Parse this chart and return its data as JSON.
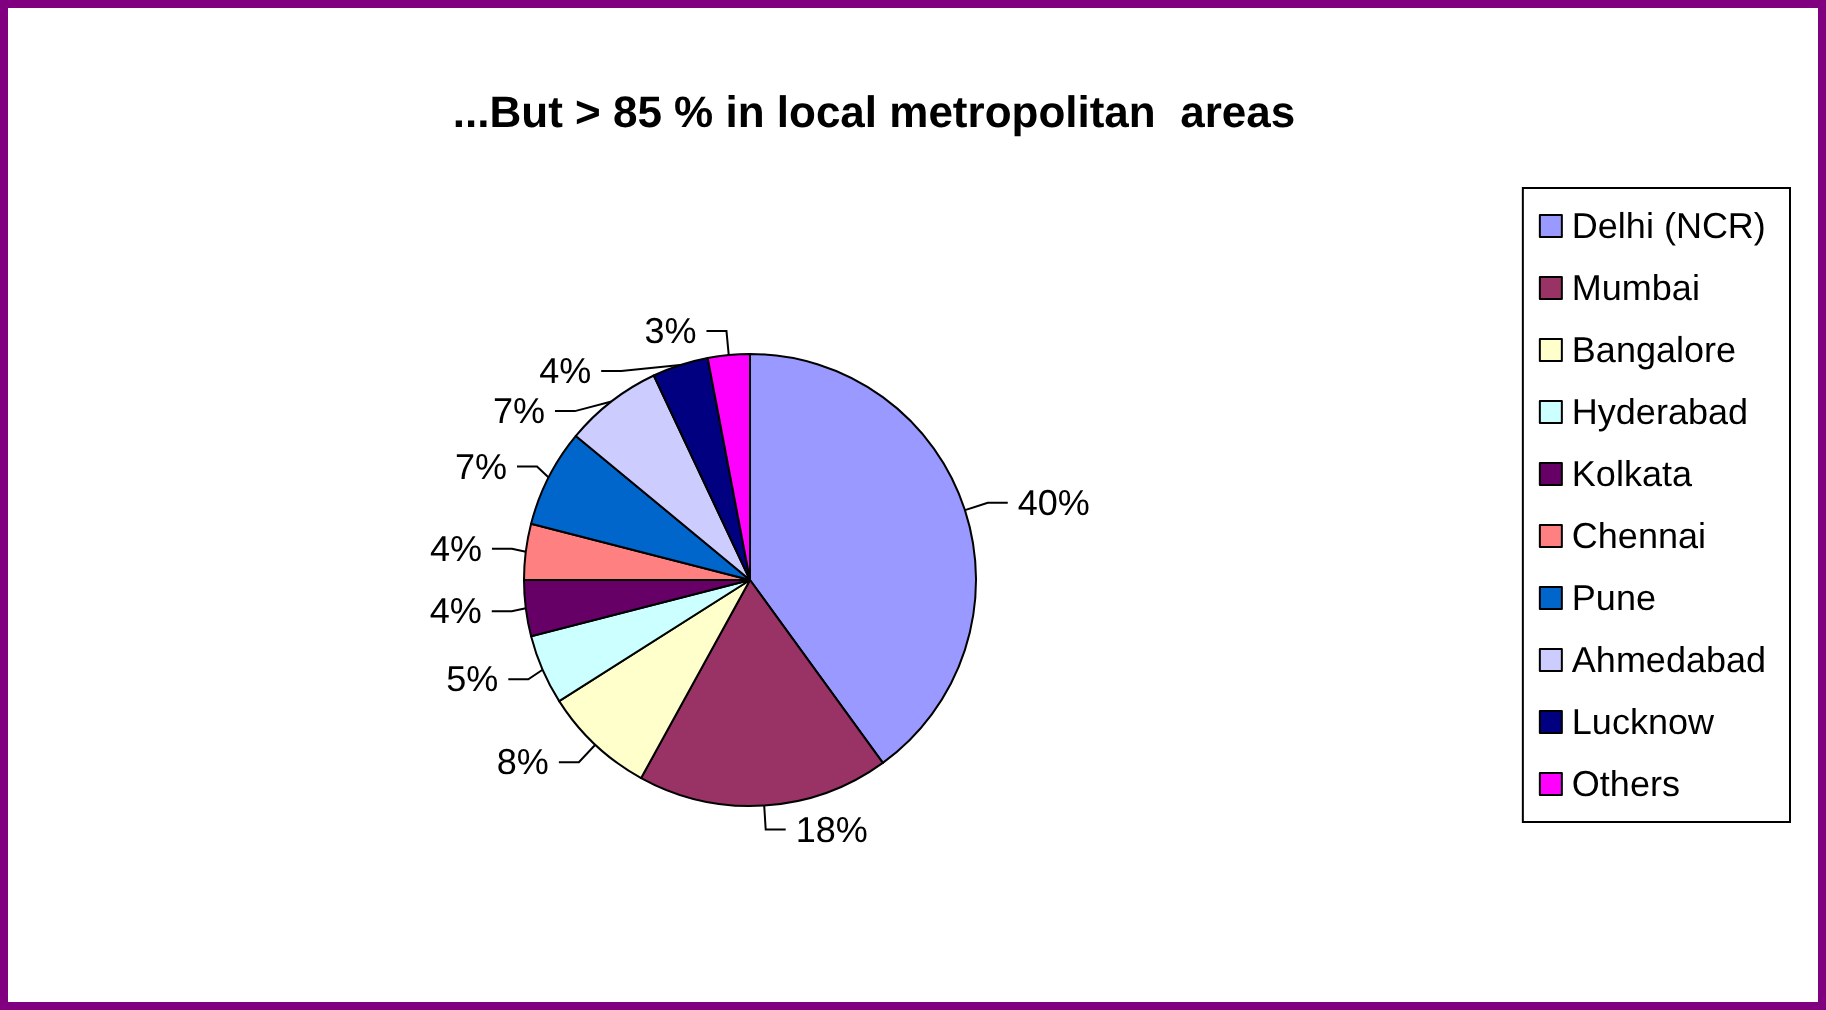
{
  "chart_data": {
    "type": "pie",
    "title": "...But > 85 % in local metropolitan  areas",
    "categories": [
      "Delhi (NCR)",
      "Mumbai",
      "Bangalore",
      "Hyderabad",
      "Kolkata",
      "Chennai",
      "Pune",
      "Ahmedabad",
      "Lucknow",
      "Others"
    ],
    "values": [
      40,
      18,
      8,
      5,
      4,
      4,
      7,
      7,
      4,
      3
    ],
    "colors": [
      "#9999ff",
      "#993366",
      "#ffffcc",
      "#ccffff",
      "#660066",
      "#ff8080",
      "#0066cc",
      "#ccccff",
      "#000080",
      "#ff00ff"
    ],
    "value_labels": [
      "40%",
      "18%",
      "8%",
      "5%",
      "4%",
      "4%",
      "7%",
      "7%",
      "4%",
      "3%"
    ],
    "legend": "right"
  }
}
